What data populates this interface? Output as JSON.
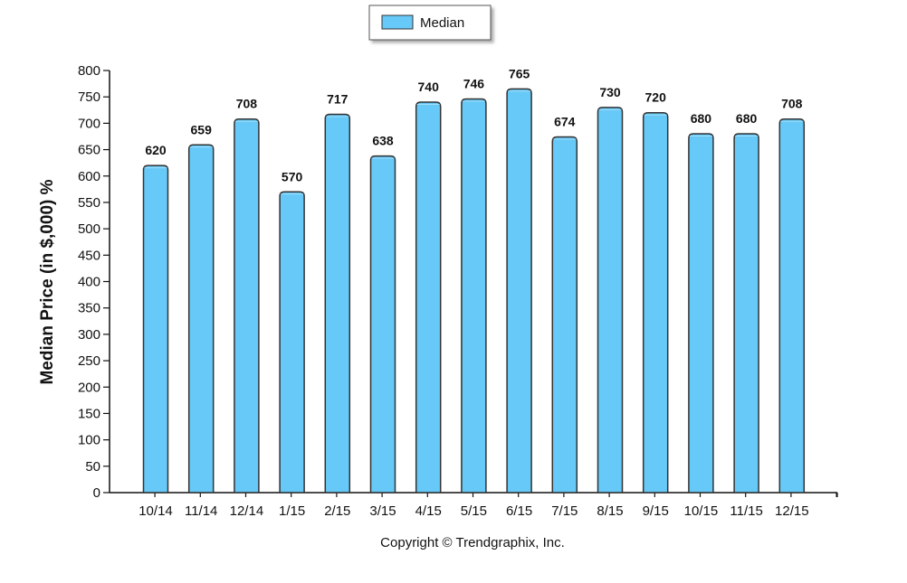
{
  "chart_data": {
    "type": "bar",
    "categories": [
      "10/14",
      "11/14",
      "12/14",
      "1/15",
      "2/15",
      "3/15",
      "4/15",
      "5/15",
      "6/15",
      "7/15",
      "8/15",
      "9/15",
      "10/15",
      "11/15",
      "12/15"
    ],
    "series": [
      {
        "name": "Median",
        "values": [
          620,
          659,
          708,
          570,
          717,
          638,
          740,
          746,
          765,
          674,
          730,
          720,
          680,
          680,
          708
        ]
      }
    ],
    "ylabel": "Median Price (in $,000) %",
    "xlabel": "",
    "ylim": [
      0,
      800
    ],
    "yticks": [
      0,
      50,
      100,
      150,
      200,
      250,
      300,
      350,
      400,
      450,
      500,
      550,
      600,
      650,
      700,
      750,
      800
    ],
    "legend_position": "top-center",
    "grid": false,
    "bar_color": "#66c9f7",
    "bar_edge_color": "#333333",
    "footer": "Copyright © Trendgraphix, Inc."
  }
}
